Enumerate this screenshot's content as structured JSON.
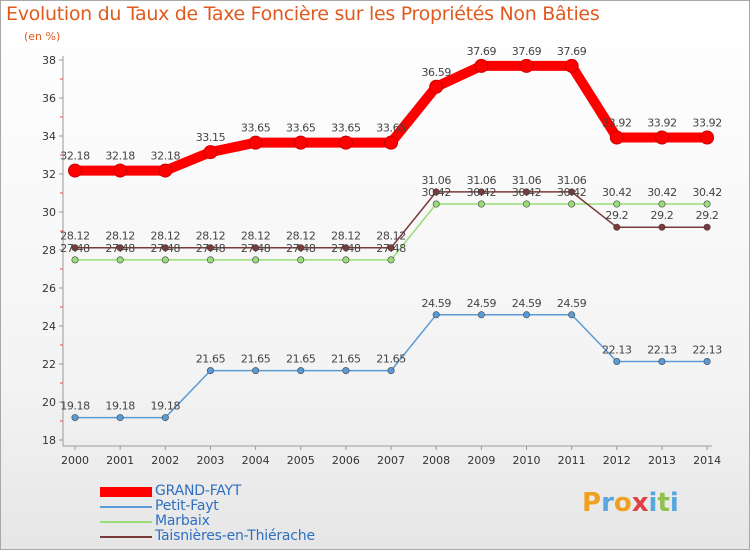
{
  "chart_data": {
    "type": "line",
    "title": "Evolution du Taux de Taxe Foncière sur les Propriétés Non Bâties",
    "subtitle": "(en %)",
    "xlabel": "",
    "ylabel": "",
    "ylim": [
      18,
      38
    ],
    "yticks": [
      "18",
      "20",
      "22",
      "24",
      "26",
      "28",
      "30",
      "32",
      "34",
      "36",
      "38"
    ],
    "categories": [
      "2000",
      "2001",
      "2002",
      "2003",
      "2004",
      "2005",
      "2006",
      "2007",
      "2008",
      "2009",
      "2010",
      "2011",
      "2012",
      "2013",
      "2014"
    ],
    "series": [
      {
        "name": "GRAND-FAYT",
        "color": "#ff0000",
        "values": [
          32.18,
          32.18,
          32.18,
          33.15,
          33.65,
          33.65,
          33.65,
          33.65,
          36.59,
          37.69,
          37.69,
          37.69,
          33.92,
          33.92,
          33.92
        ],
        "labels": [
          "32.18",
          "32.18",
          "32.18",
          "33.15",
          "33.65",
          "33.65",
          "33.65",
          "33.65",
          "36.59",
          "37.69",
          "37.69",
          "37.69",
          "33.92",
          "33.92",
          "33.92"
        ]
      },
      {
        "name": "Petit-Fayt",
        "color": "#5a9bd5",
        "values": [
          19.18,
          19.18,
          19.18,
          21.65,
          21.65,
          21.65,
          21.65,
          21.65,
          24.59,
          24.59,
          24.59,
          24.59,
          22.13,
          22.13,
          22.13
        ],
        "labels": [
          "19.18",
          "19.18",
          "19.18",
          "21.65",
          "21.65",
          "21.65",
          "21.65",
          "21.65",
          "24.59",
          "24.59",
          "24.59",
          "24.59",
          "22.13",
          "22.13",
          "22.13"
        ]
      },
      {
        "name": "Marbaix",
        "color": "#99dd77",
        "values": [
          27.48,
          27.48,
          27.48,
          27.48,
          27.48,
          27.48,
          27.48,
          27.48,
          30.42,
          30.42,
          30.42,
          30.42,
          30.42,
          30.42,
          30.42
        ],
        "labels": [
          "27.48",
          "27.48",
          "27.48",
          "27.48",
          "27.48",
          "27.48",
          "27.48",
          "27.48",
          "30.42",
          "30.42",
          "30.42",
          "30.42",
          "30.42",
          "30.42",
          "30.42"
        ]
      },
      {
        "name": "Taisnières-en-Thiérache",
        "color": "#7a3a3a",
        "values": [
          28.12,
          28.12,
          28.12,
          28.12,
          28.12,
          28.12,
          28.12,
          28.12,
          31.06,
          31.06,
          31.06,
          31.06,
          29.2,
          29.2,
          29.2
        ],
        "labels": [
          "28.12",
          "28.12",
          "28.12",
          "28.12",
          "28.12",
          "28.12",
          "28.12",
          "28.12",
          "31.06",
          "31.06",
          "31.06",
          "31.06",
          "29.2",
          "29.2",
          "29.2"
        ]
      }
    ],
    "grid": false,
    "legend": "bottom-left"
  },
  "logo": {
    "letters": [
      "P",
      "r",
      "o",
      "x",
      "i",
      "t",
      "i"
    ],
    "colors": [
      "#f0a020",
      "#58a8e0",
      "#f0a020",
      "#e04040",
      "#58a8e0",
      "#90c050",
      "#58a8e0"
    ]
  }
}
